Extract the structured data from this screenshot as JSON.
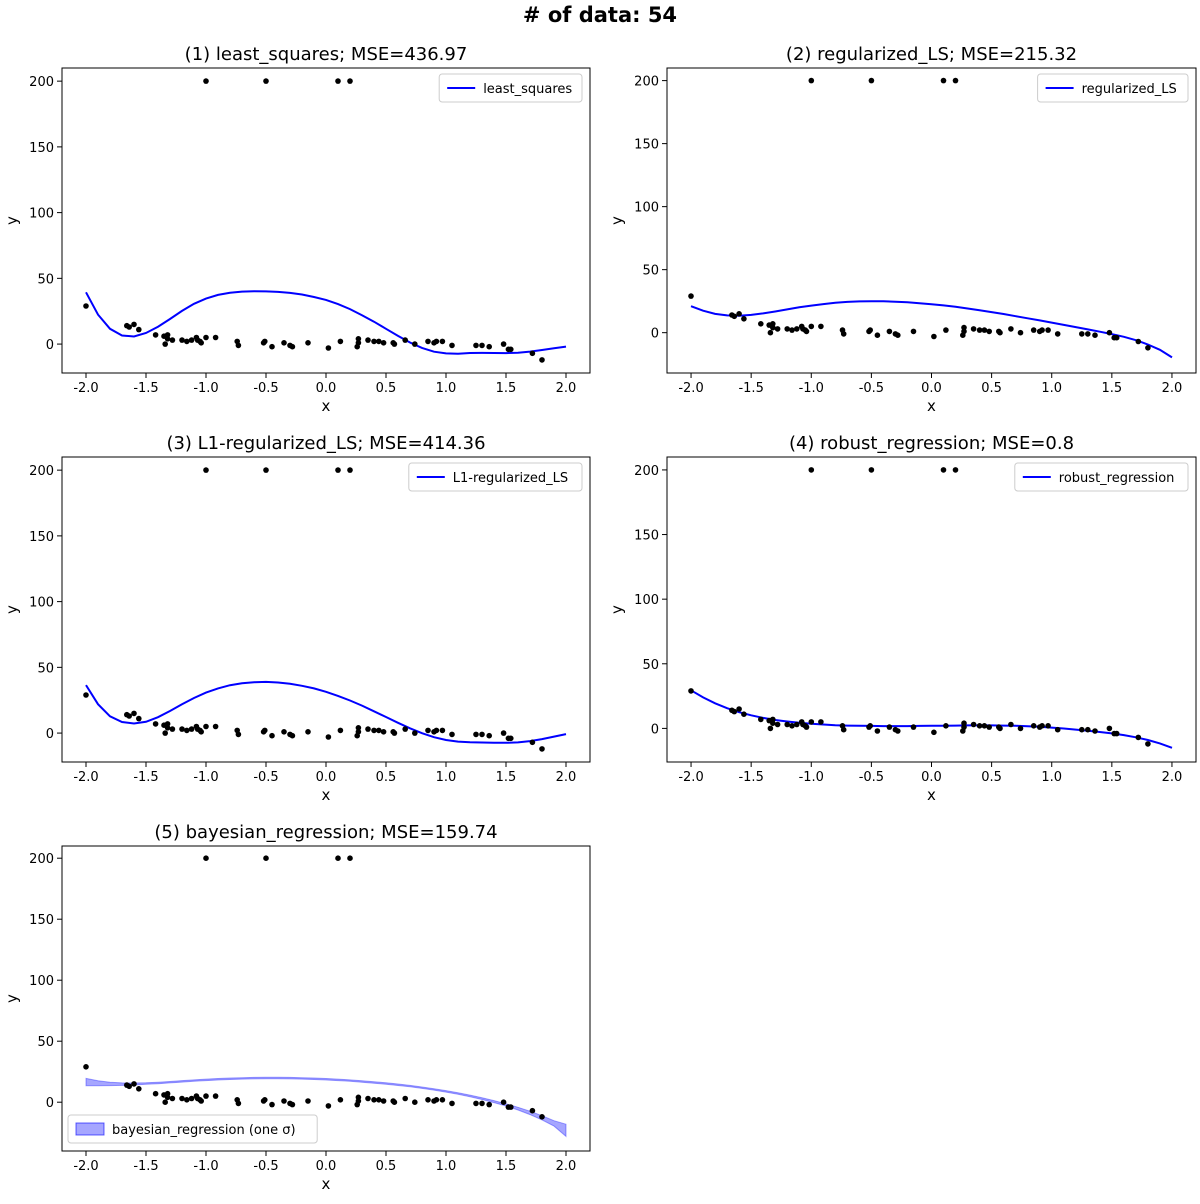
{
  "figure": {
    "title": "# of data: 54"
  },
  "colors": {
    "fit_line": "#0000ff",
    "band_fill": "#0000ff",
    "points": "#000000",
    "axes": "#000000",
    "background": "#ffffff"
  },
  "chart_data": [
    {
      "type": "scatter",
      "title": "(1) least_squares; MSE=436.97",
      "xlabel": "x",
      "ylabel": "y",
      "xlim": [
        -2.2,
        2.2
      ],
      "ylim": [
        -22,
        210
      ],
      "xticks": [
        "-2.0",
        "-1.5",
        "-1.0",
        "-0.5",
        "0.0",
        "0.5",
        "1.0",
        "1.5",
        "2.0"
      ],
      "yticks": [
        "0",
        "50",
        "100",
        "150",
        "200"
      ],
      "legend": "top-right",
      "series": [
        {
          "name": "least_squares",
          "kind": "line",
          "x": [
            -2.0,
            -1.9,
            -1.8,
            -1.7,
            -1.6,
            -1.5,
            -1.4,
            -1.3,
            -1.2,
            -1.1,
            -1.0,
            -0.9,
            -0.8,
            -0.7,
            -0.6,
            -0.5,
            -0.4,
            -0.3,
            -0.2,
            -0.1,
            0.0,
            0.1,
            0.2,
            0.3,
            0.4,
            0.5,
            0.6,
            0.7,
            0.8,
            0.9,
            1.0,
            1.1,
            1.2,
            1.3,
            1.4,
            1.5,
            1.6,
            1.7,
            1.8,
            1.9,
            2.0
          ],
          "y": [
            39.4,
            22.4,
            11.6,
            6.5,
            5.8,
            8.4,
            13.2,
            19.1,
            25.2,
            30.6,
            34.6,
            37.4,
            39.0,
            39.9,
            40.2,
            40.1,
            39.7,
            38.9,
            37.7,
            35.8,
            33.6,
            30.4,
            26.6,
            22.0,
            17.0,
            11.6,
            6.2,
            1.2,
            -2.9,
            -5.8,
            -7.1,
            -7.3,
            -6.8,
            -6.7,
            -6.8,
            -6.9,
            -6.6,
            -5.7,
            -4.5,
            -3.2,
            -1.9
          ]
        }
      ]
    },
    {
      "type": "scatter",
      "title": "(2) regularized_LS; MSE=215.32",
      "xlabel": "x",
      "ylabel": "y",
      "xlim": [
        -2.2,
        2.2
      ],
      "ylim": [
        -32,
        210
      ],
      "xticks": [
        "-2.0",
        "-1.5",
        "-1.0",
        "-0.5",
        "0.0",
        "0.5",
        "1.0",
        "1.5",
        "2.0"
      ],
      "yticks": [
        "0",
        "50",
        "100",
        "150",
        "200"
      ],
      "legend": "top-right",
      "series": [
        {
          "name": "regularized_LS",
          "kind": "line",
          "x": [
            -2.0,
            -1.9,
            -1.8,
            -1.7,
            -1.6,
            -1.5,
            -1.4,
            -1.3,
            -1.2,
            -1.1,
            -1.0,
            -0.9,
            -0.8,
            -0.7,
            -0.6,
            -0.5,
            -0.4,
            -0.3,
            -0.2,
            -0.1,
            0.0,
            0.1,
            0.2,
            0.3,
            0.4,
            0.5,
            0.6,
            0.7,
            0.8,
            0.9,
            1.0,
            1.1,
            1.2,
            1.3,
            1.4,
            1.5,
            1.6,
            1.7,
            1.8,
            1.9,
            2.0
          ],
          "y": [
            21.0,
            17.4,
            14.9,
            13.7,
            13.5,
            14.1,
            15.3,
            16.8,
            18.5,
            20.1,
            21.5,
            22.7,
            23.7,
            24.4,
            24.8,
            25.0,
            24.9,
            24.6,
            24.1,
            23.4,
            22.6,
            21.6,
            20.5,
            19.2,
            17.8,
            16.3,
            14.8,
            13.1,
            11.4,
            9.7,
            8.0,
            6.2,
            4.4,
            2.6,
            0.8,
            -1.1,
            -3.3,
            -6.0,
            -9.4,
            -13.6,
            -19.6
          ]
        }
      ]
    },
    {
      "type": "scatter",
      "title": "(3) L1-regularized_LS; MSE=414.36",
      "xlabel": "x",
      "ylabel": "y",
      "xlim": [
        -2.2,
        2.2
      ],
      "ylim": [
        -22,
        210
      ],
      "xticks": [
        "-2.0",
        "-1.5",
        "-1.0",
        "-0.5",
        "0.0",
        "0.5",
        "1.0",
        "1.5",
        "2.0"
      ],
      "yticks": [
        "0",
        "50",
        "100",
        "150",
        "200"
      ],
      "legend": "top-right",
      "series": [
        {
          "name": "L1-regularized_LS",
          "kind": "line",
          "x": [
            -2.0,
            -1.9,
            -1.8,
            -1.7,
            -1.6,
            -1.5,
            -1.4,
            -1.3,
            -1.2,
            -1.1,
            -1.0,
            -0.9,
            -0.8,
            -0.7,
            -0.6,
            -0.5,
            -0.4,
            -0.3,
            -0.2,
            -0.1,
            0.0,
            0.1,
            0.2,
            0.3,
            0.4,
            0.5,
            0.6,
            0.7,
            0.8,
            0.9,
            1.0,
            1.1,
            1.2,
            1.3,
            1.4,
            1.5,
            1.6,
            1.7,
            1.8,
            1.9,
            2.0
          ],
          "y": [
            36.5,
            22.0,
            12.8,
            8.4,
            7.3,
            8.6,
            12.1,
            16.8,
            21.9,
            26.7,
            30.8,
            34.0,
            36.4,
            37.9,
            38.7,
            38.9,
            38.5,
            37.5,
            36.0,
            34.0,
            31.4,
            28.3,
            24.8,
            20.9,
            16.6,
            12.2,
            7.8,
            3.6,
            -0.1,
            -3.1,
            -5.3,
            -6.5,
            -7.0,
            -7.2,
            -7.4,
            -7.4,
            -7.1,
            -6.1,
            -4.6,
            -2.7,
            -0.8
          ]
        }
      ]
    },
    {
      "type": "scatter",
      "title": "(4) robust_regression; MSE=0.8",
      "xlabel": "x",
      "ylabel": "y",
      "xlim": [
        -2.2,
        2.2
      ],
      "ylim": [
        -26,
        210
      ],
      "xticks": [
        "-2.0",
        "-1.5",
        "-1.0",
        "-0.5",
        "0.0",
        "0.5",
        "1.0",
        "1.5",
        "2.0"
      ],
      "yticks": [
        "0",
        "50",
        "100",
        "150",
        "200"
      ],
      "legend": "top-right",
      "series": [
        {
          "name": "robust_regression",
          "kind": "line",
          "x": [
            -2.0,
            -1.9,
            -1.8,
            -1.7,
            -1.6,
            -1.5,
            -1.4,
            -1.3,
            -1.2,
            -1.1,
            -1.0,
            -0.9,
            -0.8,
            -0.7,
            -0.6,
            -0.5,
            -0.4,
            -0.3,
            -0.2,
            -0.1,
            0.0,
            0.1,
            0.2,
            0.3,
            0.4,
            0.5,
            0.6,
            0.7,
            0.8,
            0.9,
            1.0,
            1.1,
            1.2,
            1.3,
            1.4,
            1.5,
            1.6,
            1.7,
            1.8,
            1.9,
            2.0
          ],
          "y": [
            29.5,
            24.0,
            19.4,
            15.6,
            12.5,
            10.1,
            8.1,
            6.5,
            5.3,
            4.3,
            3.6,
            3.0,
            2.5,
            2.2,
            2.0,
            1.9,
            1.8,
            1.8,
            1.8,
            1.9,
            2.0,
            2.1,
            2.2,
            2.3,
            2.3,
            2.3,
            2.2,
            2.0,
            1.7,
            1.2,
            0.6,
            -0.1,
            -0.9,
            -1.8,
            -2.8,
            -3.9,
            -5.2,
            -6.9,
            -9.0,
            -11.6,
            -15.0
          ]
        }
      ]
    },
    {
      "type": "scatter",
      "title": "(5) bayesian_regression; MSE=159.74",
      "xlabel": "x",
      "ylabel": "y",
      "xlim": [
        -2.2,
        2.2
      ],
      "ylim": [
        -40,
        210
      ],
      "xticks": [
        "-2.0",
        "-1.5",
        "-1.0",
        "-0.5",
        "0.0",
        "0.5",
        "1.0",
        "1.5",
        "2.0"
      ],
      "yticks": [
        "0",
        "50",
        "100",
        "150",
        "200"
      ],
      "legend": "bottom-left",
      "series": [
        {
          "name": "bayesian_regression (one σ)",
          "kind": "band",
          "x": [
            -2.0,
            -1.9,
            -1.8,
            -1.7,
            -1.6,
            -1.5,
            -1.4,
            -1.3,
            -1.2,
            -1.1,
            -1.0,
            -0.9,
            -0.8,
            -0.7,
            -0.6,
            -0.5,
            -0.4,
            -0.3,
            -0.2,
            -0.1,
            0.0,
            0.1,
            0.2,
            0.3,
            0.4,
            0.5,
            0.6,
            0.7,
            0.8,
            0.9,
            1.0,
            1.1,
            1.2,
            1.3,
            1.4,
            1.5,
            1.6,
            1.7,
            1.8,
            1.9,
            2.0
          ],
          "y_mean": [
            16.5,
            15.5,
            15.0,
            14.8,
            14.9,
            15.3,
            15.8,
            16.4,
            17.1,
            17.7,
            18.3,
            18.8,
            19.2,
            19.5,
            19.7,
            19.8,
            19.8,
            19.7,
            19.5,
            19.2,
            18.8,
            18.3,
            17.7,
            17.0,
            16.2,
            15.3,
            14.3,
            13.2,
            11.9,
            10.5,
            8.9,
            7.1,
            5.1,
            2.9,
            0.5,
            -2.2,
            -5.3,
            -8.8,
            -12.8,
            -17.4,
            -23.0
          ],
          "y_upper": [
            19.5,
            17.5,
            16.4,
            15.8,
            15.7,
            15.9,
            16.4,
            17.0,
            17.7,
            18.3,
            18.9,
            19.4,
            19.8,
            20.1,
            20.3,
            20.4,
            20.4,
            20.3,
            20.1,
            19.8,
            19.4,
            18.9,
            18.3,
            17.6,
            16.8,
            15.9,
            14.9,
            13.8,
            12.5,
            11.1,
            9.5,
            7.7,
            5.8,
            3.6,
            1.3,
            -1.3,
            -4.2,
            -7.4,
            -11.1,
            -15.2,
            -18.0
          ],
          "y_lower": [
            13.5,
            13.5,
            13.6,
            13.8,
            14.1,
            14.7,
            15.2,
            15.8,
            16.5,
            17.1,
            17.7,
            18.2,
            18.6,
            18.9,
            19.1,
            19.2,
            19.2,
            19.1,
            18.9,
            18.6,
            18.2,
            17.7,
            17.1,
            16.4,
            15.6,
            14.7,
            13.7,
            12.6,
            11.3,
            9.9,
            8.3,
            6.5,
            4.4,
            2.2,
            -0.3,
            -3.1,
            -6.4,
            -10.2,
            -14.5,
            -19.6,
            -28.0
          ]
        }
      ]
    }
  ],
  "shared_points": {
    "x": [
      -2.0,
      -1.66,
      -1.64,
      -1.6,
      -1.56,
      -1.42,
      -1.35,
      -1.34,
      -1.32,
      -1.32,
      -1.28,
      -1.2,
      -1.16,
      -1.12,
      -1.08,
      -1.07,
      -1.05,
      -1.04,
      -1.0,
      -0.92,
      -0.74,
      -0.73,
      -0.52,
      -0.51,
      -0.45,
      -0.35,
      -0.3,
      -0.28,
      -0.15,
      0.02,
      0.12,
      0.26,
      0.27,
      0.27,
      0.35,
      0.4,
      0.44,
      0.48,
      0.56,
      0.57,
      0.66,
      0.74,
      0.85,
      0.9,
      0.92,
      0.97,
      1.05,
      1.25,
      1.3,
      1.36,
      1.48,
      1.52,
      1.54,
      1.72,
      -1.0,
      -0.5,
      0.1,
      0.2
    ],
    "y": [
      29,
      14,
      13,
      15,
      11,
      7,
      6,
      0,
      7,
      4,
      3,
      3,
      2,
      3,
      5,
      3,
      2,
      1,
      5,
      5,
      2,
      -1,
      1,
      2,
      -2,
      1,
      -1,
      -2,
      1,
      -3,
      2,
      -2,
      4,
      1,
      3,
      2,
      2,
      1,
      1,
      0,
      3,
      0,
      2,
      1,
      2,
      2,
      -1,
      -1,
      -1,
      -2,
      0,
      -4,
      -4,
      -7,
      200,
      200,
      200,
      200
    ],
    "extra_x": [
      1.8
    ],
    "extra_y": [
      -12
    ]
  }
}
